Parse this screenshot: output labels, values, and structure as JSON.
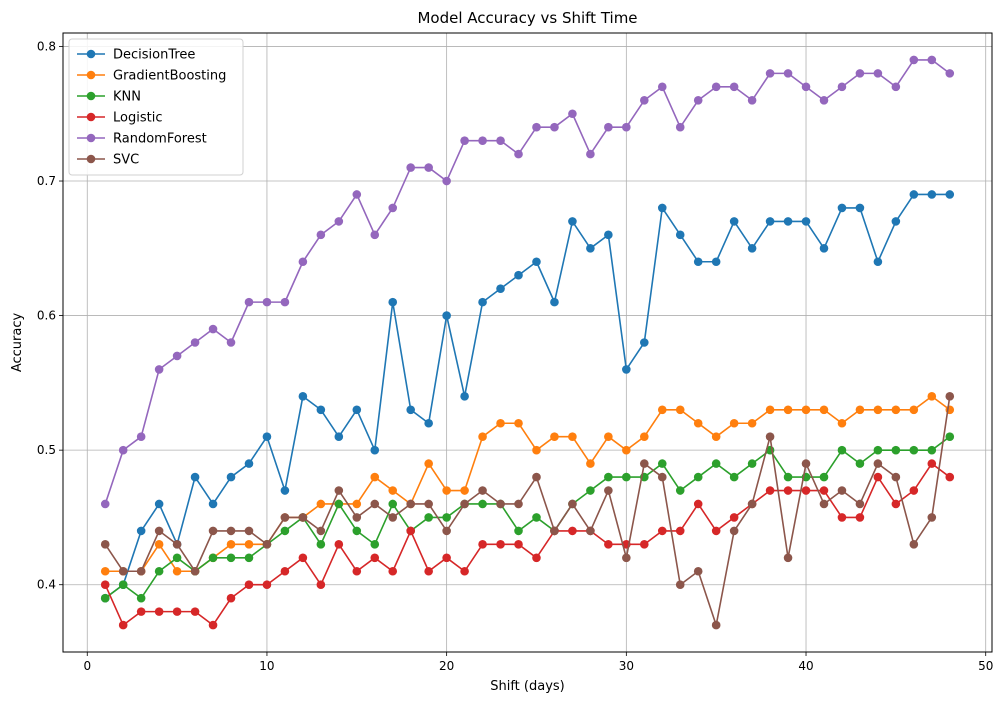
{
  "chart_data": {
    "type": "line",
    "title": "Model Accuracy vs Shift Time",
    "xlabel": "Shift (days)",
    "ylabel": "Accuracy",
    "xlim": [
      -1.35,
      50.35
    ],
    "ylim": [
      0.35,
      0.81
    ],
    "xticks": [
      0,
      10,
      20,
      30,
      40,
      50
    ],
    "yticks": [
      0.4,
      0.5,
      0.6,
      0.7,
      0.8
    ],
    "grid": true,
    "legend_position": "upper-left",
    "x": [
      1,
      2,
      3,
      4,
      5,
      6,
      7,
      8,
      9,
      10,
      11,
      12,
      13,
      14,
      15,
      16,
      17,
      18,
      19,
      20,
      21,
      22,
      23,
      24,
      25,
      26,
      27,
      28,
      29,
      30,
      31,
      32,
      33,
      34,
      35,
      36,
      37,
      38,
      39,
      40,
      41,
      42,
      43,
      44,
      45,
      46,
      47,
      48
    ],
    "series": [
      {
        "name": "DecisionTree",
        "color": "#1f77b4",
        "values": [
          0.39,
          0.4,
          0.44,
          0.46,
          0.43,
          0.48,
          0.46,
          0.48,
          0.49,
          0.51,
          0.47,
          0.54,
          0.53,
          0.51,
          0.53,
          0.5,
          0.61,
          0.53,
          0.52,
          0.6,
          0.54,
          0.61,
          0.62,
          0.63,
          0.64,
          0.61,
          0.67,
          0.65,
          0.66,
          0.56,
          0.58,
          0.68,
          0.66,
          0.64,
          0.64,
          0.67,
          0.65,
          0.67,
          0.67,
          0.67,
          0.65,
          0.68,
          0.68,
          0.64,
          0.67,
          0.69,
          0.69,
          0.69
        ]
      },
      {
        "name": "GradientBoosting",
        "color": "#ff7f0e",
        "values": [
          0.41,
          0.41,
          0.41,
          0.43,
          0.41,
          0.41,
          0.42,
          0.43,
          0.43,
          0.43,
          0.45,
          0.45,
          0.46,
          0.46,
          0.46,
          0.48,
          0.47,
          0.46,
          0.49,
          0.47,
          0.47,
          0.51,
          0.52,
          0.52,
          0.5,
          0.51,
          0.51,
          0.49,
          0.51,
          0.5,
          0.51,
          0.53,
          0.53,
          0.52,
          0.51,
          0.52,
          0.52,
          0.53,
          0.53,
          0.53,
          0.53,
          0.52,
          0.53,
          0.53,
          0.53,
          0.53,
          0.54,
          0.53
        ]
      },
      {
        "name": "KNN",
        "color": "#2ca02c",
        "values": [
          0.39,
          0.4,
          0.39,
          0.41,
          0.42,
          0.41,
          0.42,
          0.42,
          0.42,
          0.43,
          0.44,
          0.45,
          0.43,
          0.46,
          0.44,
          0.43,
          0.46,
          0.44,
          0.45,
          0.45,
          0.46,
          0.46,
          0.46,
          0.44,
          0.45,
          0.44,
          0.46,
          0.47,
          0.48,
          0.48,
          0.48,
          0.49,
          0.47,
          0.48,
          0.49,
          0.48,
          0.49,
          0.5,
          0.48,
          0.48,
          0.48,
          0.5,
          0.49,
          0.5,
          0.5,
          0.5,
          0.5,
          0.51
        ]
      },
      {
        "name": "Logistic",
        "color": "#d62728",
        "values": [
          0.4,
          0.37,
          0.38,
          0.38,
          0.38,
          0.38,
          0.37,
          0.39,
          0.4,
          0.4,
          0.41,
          0.42,
          0.4,
          0.43,
          0.41,
          0.42,
          0.41,
          0.44,
          0.41,
          0.42,
          0.41,
          0.43,
          0.43,
          0.43,
          0.42,
          0.44,
          0.44,
          0.44,
          0.43,
          0.43,
          0.43,
          0.44,
          0.44,
          0.46,
          0.44,
          0.45,
          0.46,
          0.47,
          0.47,
          0.47,
          0.47,
          0.45,
          0.45,
          0.48,
          0.46,
          0.47,
          0.49,
          0.48
        ]
      },
      {
        "name": "RandomForest",
        "color": "#9467bd",
        "values": [
          0.46,
          0.5,
          0.51,
          0.56,
          0.57,
          0.58,
          0.59,
          0.58,
          0.61,
          0.61,
          0.61,
          0.64,
          0.66,
          0.67,
          0.69,
          0.66,
          0.68,
          0.71,
          0.71,
          0.7,
          0.73,
          0.73,
          0.73,
          0.72,
          0.74,
          0.74,
          0.75,
          0.72,
          0.74,
          0.74,
          0.76,
          0.77,
          0.74,
          0.76,
          0.77,
          0.77,
          0.76,
          0.78,
          0.78,
          0.77,
          0.76,
          0.77,
          0.78,
          0.78,
          0.77,
          0.79,
          0.79,
          0.78
        ]
      },
      {
        "name": "SVC",
        "color": "#8c564b",
        "values": [
          0.43,
          0.41,
          0.41,
          0.44,
          0.43,
          0.41,
          0.44,
          0.44,
          0.44,
          0.43,
          0.45,
          0.45,
          0.44,
          0.47,
          0.45,
          0.46,
          0.45,
          0.46,
          0.46,
          0.44,
          0.46,
          0.47,
          0.46,
          0.46,
          0.48,
          0.44,
          0.46,
          0.44,
          0.47,
          0.42,
          0.49,
          0.48,
          0.4,
          0.41,
          0.37,
          0.44,
          0.46,
          0.51,
          0.42,
          0.49,
          0.46,
          0.47,
          0.46,
          0.49,
          0.48,
          0.43,
          0.45,
          0.54
        ]
      }
    ]
  }
}
